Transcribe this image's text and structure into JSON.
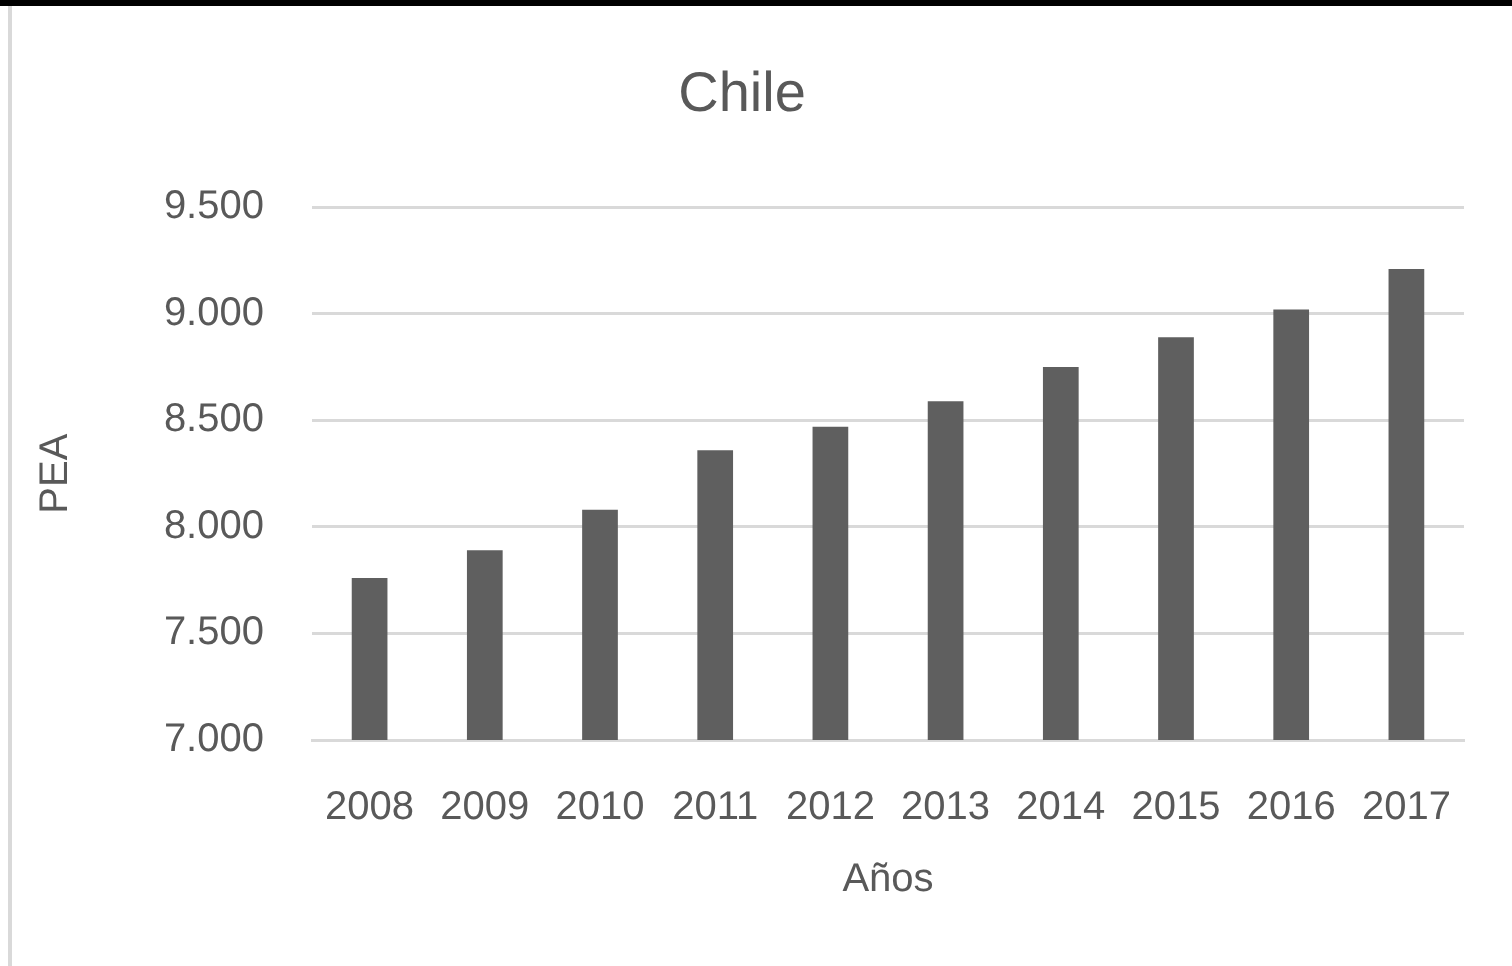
{
  "chart_data": {
    "type": "bar",
    "title": "Chile",
    "xlabel": "Años",
    "ylabel": "PEA",
    "categories": [
      "2008",
      "2009",
      "2010",
      "2011",
      "2012",
      "2013",
      "2014",
      "2015",
      "2016",
      "2017"
    ],
    "values": [
      7760,
      7890,
      8080,
      8360,
      8470,
      8590,
      8750,
      8890,
      9020,
      9210
    ],
    "color": "#5f5f5f",
    "ylim": [
      7000,
      9500
    ],
    "yticks": [
      {
        "value": 7000,
        "label": "7.000"
      },
      {
        "value": 7500,
        "label": "7.500"
      },
      {
        "value": 8000,
        "label": "8.000"
      },
      {
        "value": 8500,
        "label": "8.500"
      },
      {
        "value": 9000,
        "label": "9.000"
      },
      {
        "value": 9500,
        "label": "9.500"
      }
    ],
    "grid": "y",
    "legend": false
  }
}
